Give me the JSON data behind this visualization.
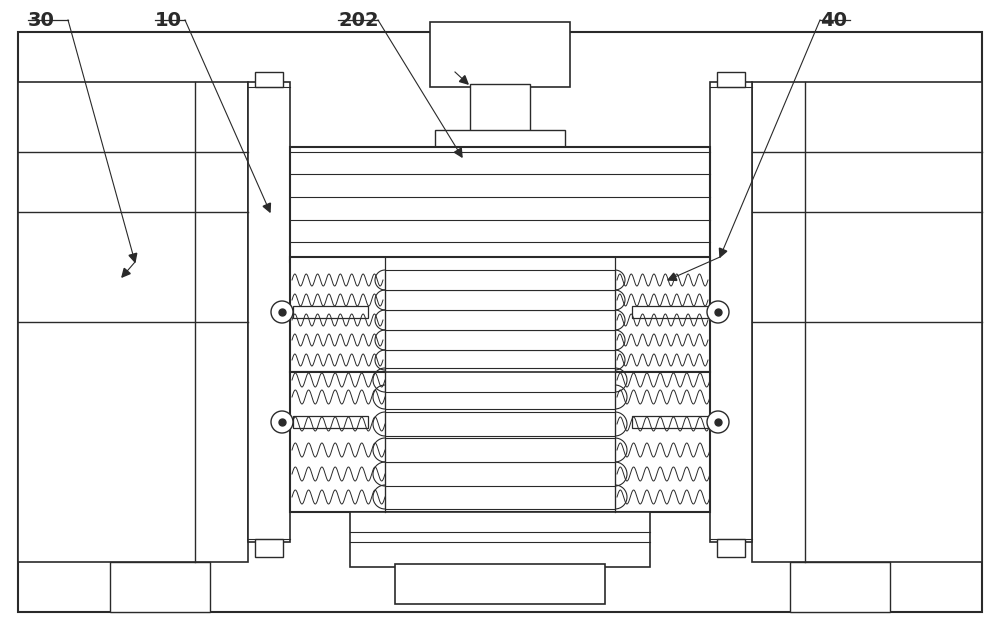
{
  "bg_color": "#ffffff",
  "line_color": "#2a2a2a",
  "fill_white": "#ffffff",
  "fill_light": "#f0f0f0",
  "fill_med": "#d8d8d8",
  "label_fontsize": 14,
  "fig_width": 10.0,
  "fig_height": 6.42
}
